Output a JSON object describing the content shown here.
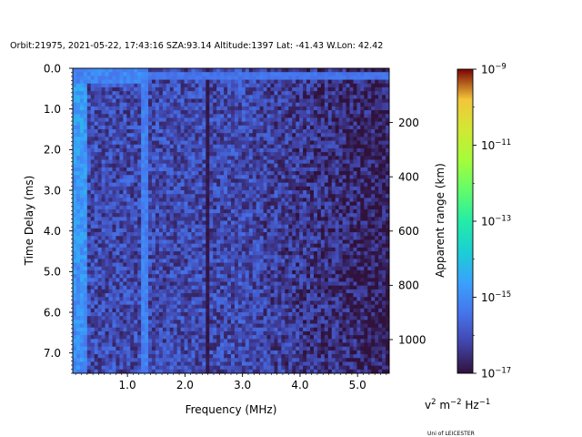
{
  "header": "Orbit:21975, 2021-05-22, 17:43:16 SZA:93.14 Altitude:1397 Lat: -41.43 W.Lon: 42.42",
  "credit": "Uni of LEICESTER",
  "chart_data": {
    "type": "heatmap",
    "xlabel": "Frequency (MHz)",
    "ylabel": "Time Delay (ms)",
    "y2label": "Apparent range (km)",
    "xlim": [
      0.05,
      5.55
    ],
    "ylim": [
      0.0,
      7.5
    ],
    "y_inverted": true,
    "x_ticks": [
      1.0,
      2.0,
      3.0,
      4.0,
      5.0
    ],
    "x_tick_labels": [
      "1.0",
      "2.0",
      "3.0",
      "4.0",
      "5.0"
    ],
    "y_ticks": [
      0.0,
      1.0,
      2.0,
      3.0,
      4.0,
      5.0,
      6.0,
      7.0
    ],
    "y_tick_labels": [
      "0.0",
      "1.0",
      "2.0",
      "3.0",
      "4.0",
      "5.0",
      "6.0",
      "7.0"
    ],
    "y2_ticks_km": [
      200,
      400,
      600,
      800,
      1000
    ],
    "y2_tick_labels": [
      "200",
      "400",
      "600",
      "800",
      "1000"
    ],
    "km_per_ms": 149.9,
    "colorbar": {
      "label_base": "v",
      "label_rest": " m",
      "label_end": " Hz",
      "label_exp1": "2",
      "label_exp2": "−2",
      "label_exp3": "−1",
      "scale": "log",
      "range": [
        1e-17,
        1e-09
      ],
      "colormap": "turbo",
      "tick_exponents": [
        "−17",
        "−15",
        "−13",
        "−11",
        "−9"
      ],
      "tick_base": "10"
    },
    "grid": false,
    "features": [
      {
        "kind": "bright_row",
        "time_delay_ms": 0.15,
        "level_log10": -15.4
      },
      {
        "kind": "bright_band",
        "freq_mhz": [
          0.08,
          0.3
        ],
        "level_log10": -14.6
      },
      {
        "kind": "column",
        "freq_mhz": 1.3,
        "level_log10": -15.2
      },
      {
        "kind": "dark_column",
        "freq_mhz": 2.37,
        "level_log10": -16.9
      }
    ]
  }
}
